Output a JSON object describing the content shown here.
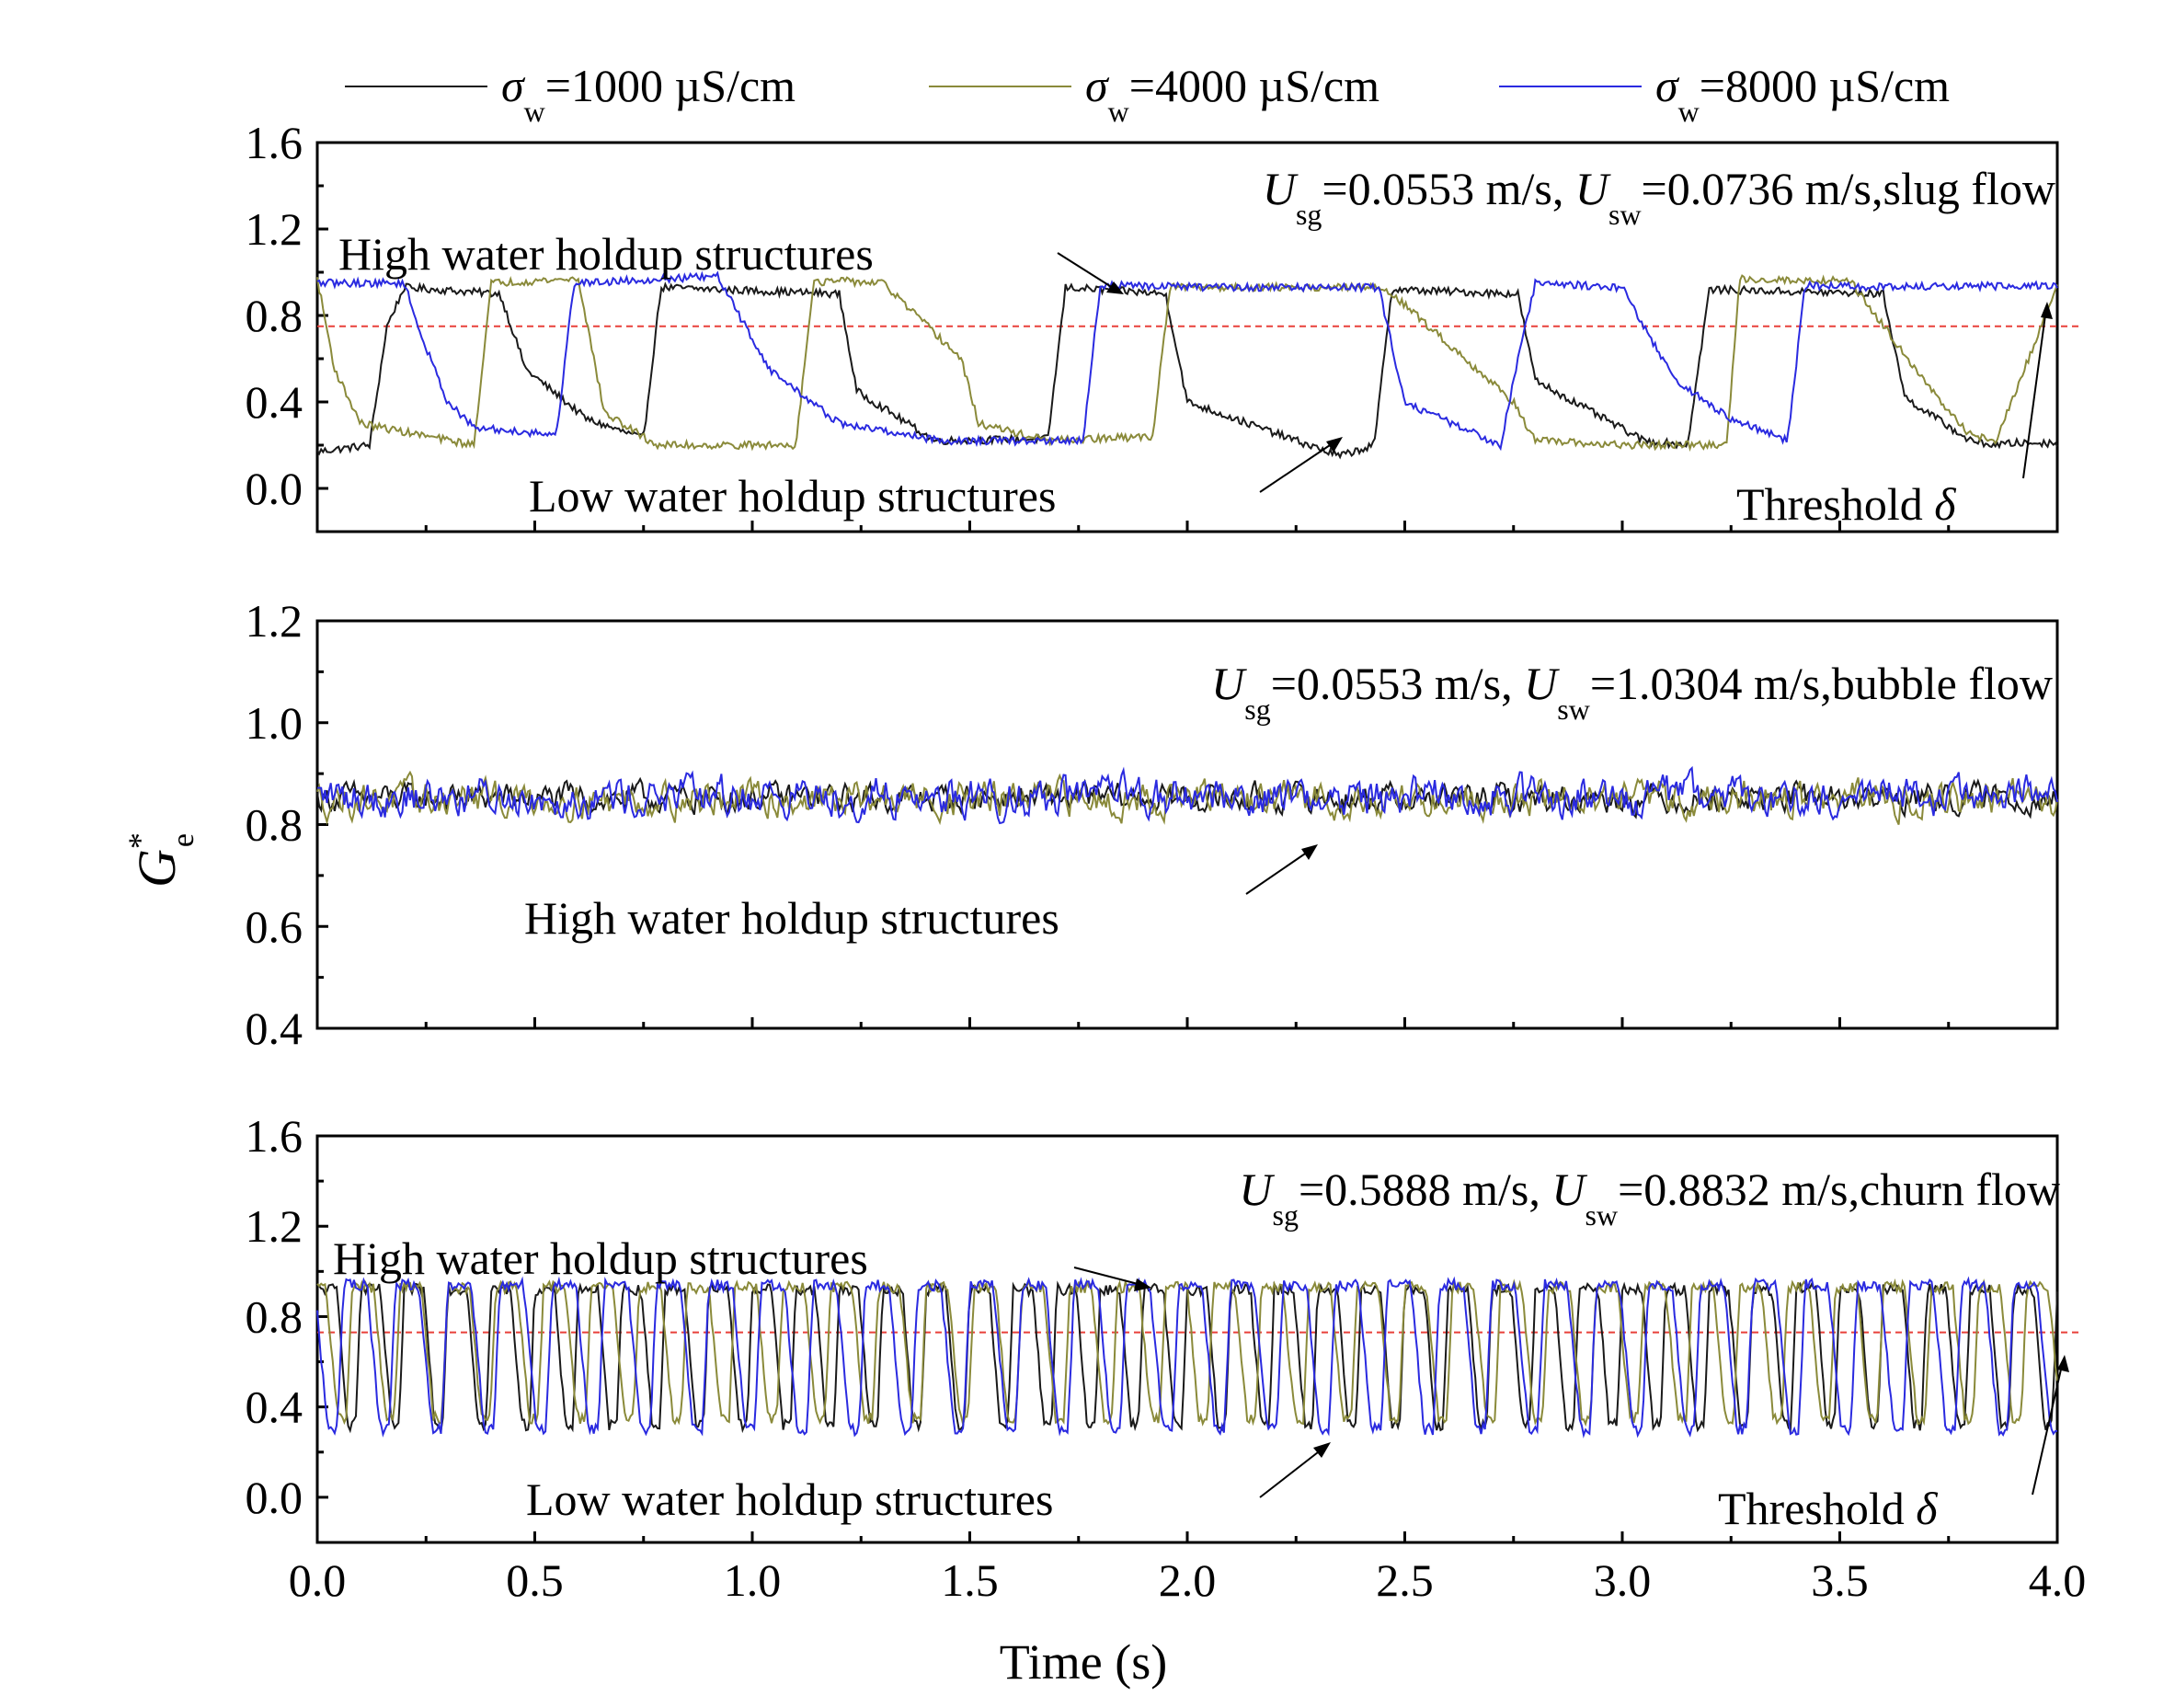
{
  "legend": [
    {
      "symbol": "σ",
      "sub": "w",
      "rest": "=1000 µS/cm",
      "color": "#1a1a1a"
    },
    {
      "symbol": "σ",
      "sub": "w",
      "rest": "=4000 µS/cm",
      "color": "#8a8a3a"
    },
    {
      "symbol": "σ",
      "sub": "w",
      "rest": "=8000 µS/cm",
      "color": "#2a2ae0"
    }
  ],
  "y_label": {
    "symbol": "G",
    "sup": "*",
    "sub": "e"
  },
  "x_label": "Time (s)",
  "colors": {
    "series1": "#1a1a1a",
    "series2": "#8a8a3a",
    "series3": "#2a2ae0",
    "threshold": "#e8403a"
  },
  "chart_data": [
    {
      "type": "line",
      "panel": "top",
      "title": {
        "u1": "U",
        "s1": "sg",
        "v1": "=0.0553 m/s, ",
        "u2": "U",
        "s2": "sw",
        "v2": "=0.0736 m/s,slug flow"
      },
      "xlim": [
        0,
        4
      ],
      "ylim": [
        -0.2,
        1.6
      ],
      "yticks": [
        "0.0",
        "0.4",
        "0.8",
        "1.2",
        "1.6"
      ],
      "threshold": 0.75,
      "annotations": {
        "high": "High water holdup structures",
        "low": "Low water holdup structures",
        "threshold_word": "Threshold ",
        "threshold_sym": "δ"
      },
      "series": [
        {
          "name": "σw=1000 µS/cm",
          "color": "#1a1a1a",
          "x": [
            0,
            0.12,
            0.16,
            0.2,
            0.42,
            0.48,
            0.62,
            0.75,
            0.79,
            1.2,
            1.24,
            1.42,
            1.68,
            1.72,
            1.95,
            2.0,
            2.35,
            2.43,
            2.47,
            2.76,
            2.8,
            3.05,
            3.15,
            3.2,
            3.6,
            3.65,
            3.8,
            3.86,
            3.9,
            4.0
          ],
          "y": [
            0.17,
            0.2,
            0.75,
            0.93,
            0.9,
            0.55,
            0.32,
            0.23,
            0.93,
            0.9,
            0.45,
            0.22,
            0.23,
            0.93,
            0.9,
            0.4,
            0.15,
            0.2,
            0.92,
            0.9,
            0.5,
            0.22,
            0.2,
            0.92,
            0.9,
            0.42,
            0.22,
            0.2,
            0.21,
            0.21
          ]
        },
        {
          "name": "σw=4000 µS/cm",
          "color": "#8a8a3a",
          "x": [
            0,
            0.04,
            0.1,
            0.36,
            0.4,
            0.6,
            0.66,
            0.78,
            1.1,
            1.14,
            1.2,
            1.3,
            1.48,
            1.52,
            1.68,
            1.92,
            1.96,
            2.1,
            2.42,
            2.46,
            2.75,
            2.8,
            3.0,
            3.1,
            3.24,
            3.27,
            3.45,
            3.52,
            3.75,
            3.8,
            3.86,
            4.0
          ],
          "y": [
            0.97,
            0.55,
            0.3,
            0.2,
            0.95,
            0.97,
            0.35,
            0.2,
            0.2,
            0.95,
            0.96,
            0.95,
            0.6,
            0.3,
            0.22,
            0.24,
            0.93,
            0.93,
            0.93,
            0.92,
            0.4,
            0.22,
            0.2,
            0.2,
            0.2,
            0.97,
            0.96,
            0.97,
            0.35,
            0.25,
            0.22,
            0.94
          ]
        },
        {
          "name": "σw=8000 µS/cm",
          "color": "#2a2ae0",
          "x": [
            0,
            0.2,
            0.24,
            0.3,
            0.36,
            0.55,
            0.59,
            0.8,
            0.92,
            1.04,
            1.2,
            1.44,
            1.6,
            1.76,
            1.8,
            2.1,
            2.3,
            2.44,
            2.5,
            2.72,
            2.76,
            2.8,
            3.0,
            3.12,
            3.25,
            3.38,
            3.42,
            3.6,
            4.0
          ],
          "y": [
            0.95,
            0.95,
            0.7,
            0.4,
            0.28,
            0.25,
            0.95,
            0.97,
            0.98,
            0.55,
            0.3,
            0.22,
            0.22,
            0.22,
            0.94,
            0.93,
            0.93,
            0.93,
            0.4,
            0.2,
            0.6,
            0.95,
            0.93,
            0.5,
            0.32,
            0.22,
            0.94,
            0.93,
            0.94
          ]
        }
      ]
    },
    {
      "type": "line",
      "panel": "middle",
      "title": {
        "u1": "U",
        "s1": "sg",
        "v1": "=0.0553 m/s, ",
        "u2": "U",
        "s2": "sw",
        "v2": "=1.0304 m/s,bubble flow"
      },
      "xlim": [
        0,
        4
      ],
      "ylim": [
        0.4,
        1.2
      ],
      "yticks": [
        "0.4",
        "0.6",
        "0.8",
        "1.0",
        "1.2"
      ],
      "annotations": {
        "high": "High water holdup structures"
      },
      "series": [
        {
          "name": "σw=1000 µS/cm",
          "color": "#1a1a1a",
          "mean": 0.852,
          "amplitude": 0.02
        },
        {
          "name": "σw=4000 µS/cm",
          "color": "#8a8a3a",
          "mean": 0.85,
          "amplitude": 0.025
        },
        {
          "name": "σw=8000 µS/cm",
          "color": "#2a2ae0",
          "mean": 0.855,
          "amplitude": 0.028
        }
      ]
    },
    {
      "type": "line",
      "panel": "bottom",
      "title": {
        "u1": "U",
        "s1": "sg",
        "v1": "=0.5888 m/s, ",
        "u2": "U",
        "s2": "sw",
        "v2": "=0.8832 m/s,churn flow"
      },
      "xlim": [
        0,
        4
      ],
      "ylim": [
        -0.2,
        1.6
      ],
      "yticks": [
        "0.0",
        "0.4",
        "0.8",
        "1.2",
        "1.6"
      ],
      "xticks": [
        "0.0",
        "0.5",
        "1.0",
        "1.5",
        "2.0",
        "2.5",
        "3.0",
        "3.5",
        "4.0"
      ],
      "threshold": 0.73,
      "annotations": {
        "high": "High water holdup structures",
        "low": "Low water holdup structures",
        "threshold_word": "Threshold ",
        "threshold_sym": "δ"
      },
      "series": [
        {
          "name": "σw=1000 µS/cm",
          "color": "#1a1a1a",
          "high": 0.92,
          "low": 0.32,
          "period": 0.1
        },
        {
          "name": "σw=4000 µS/cm",
          "color": "#8a8a3a",
          "high": 0.93,
          "low": 0.35,
          "period": 0.11
        },
        {
          "name": "σw=8000 µS/cm",
          "color": "#2a2ae0",
          "high": 0.94,
          "low": 0.3,
          "period": 0.12
        }
      ]
    }
  ]
}
